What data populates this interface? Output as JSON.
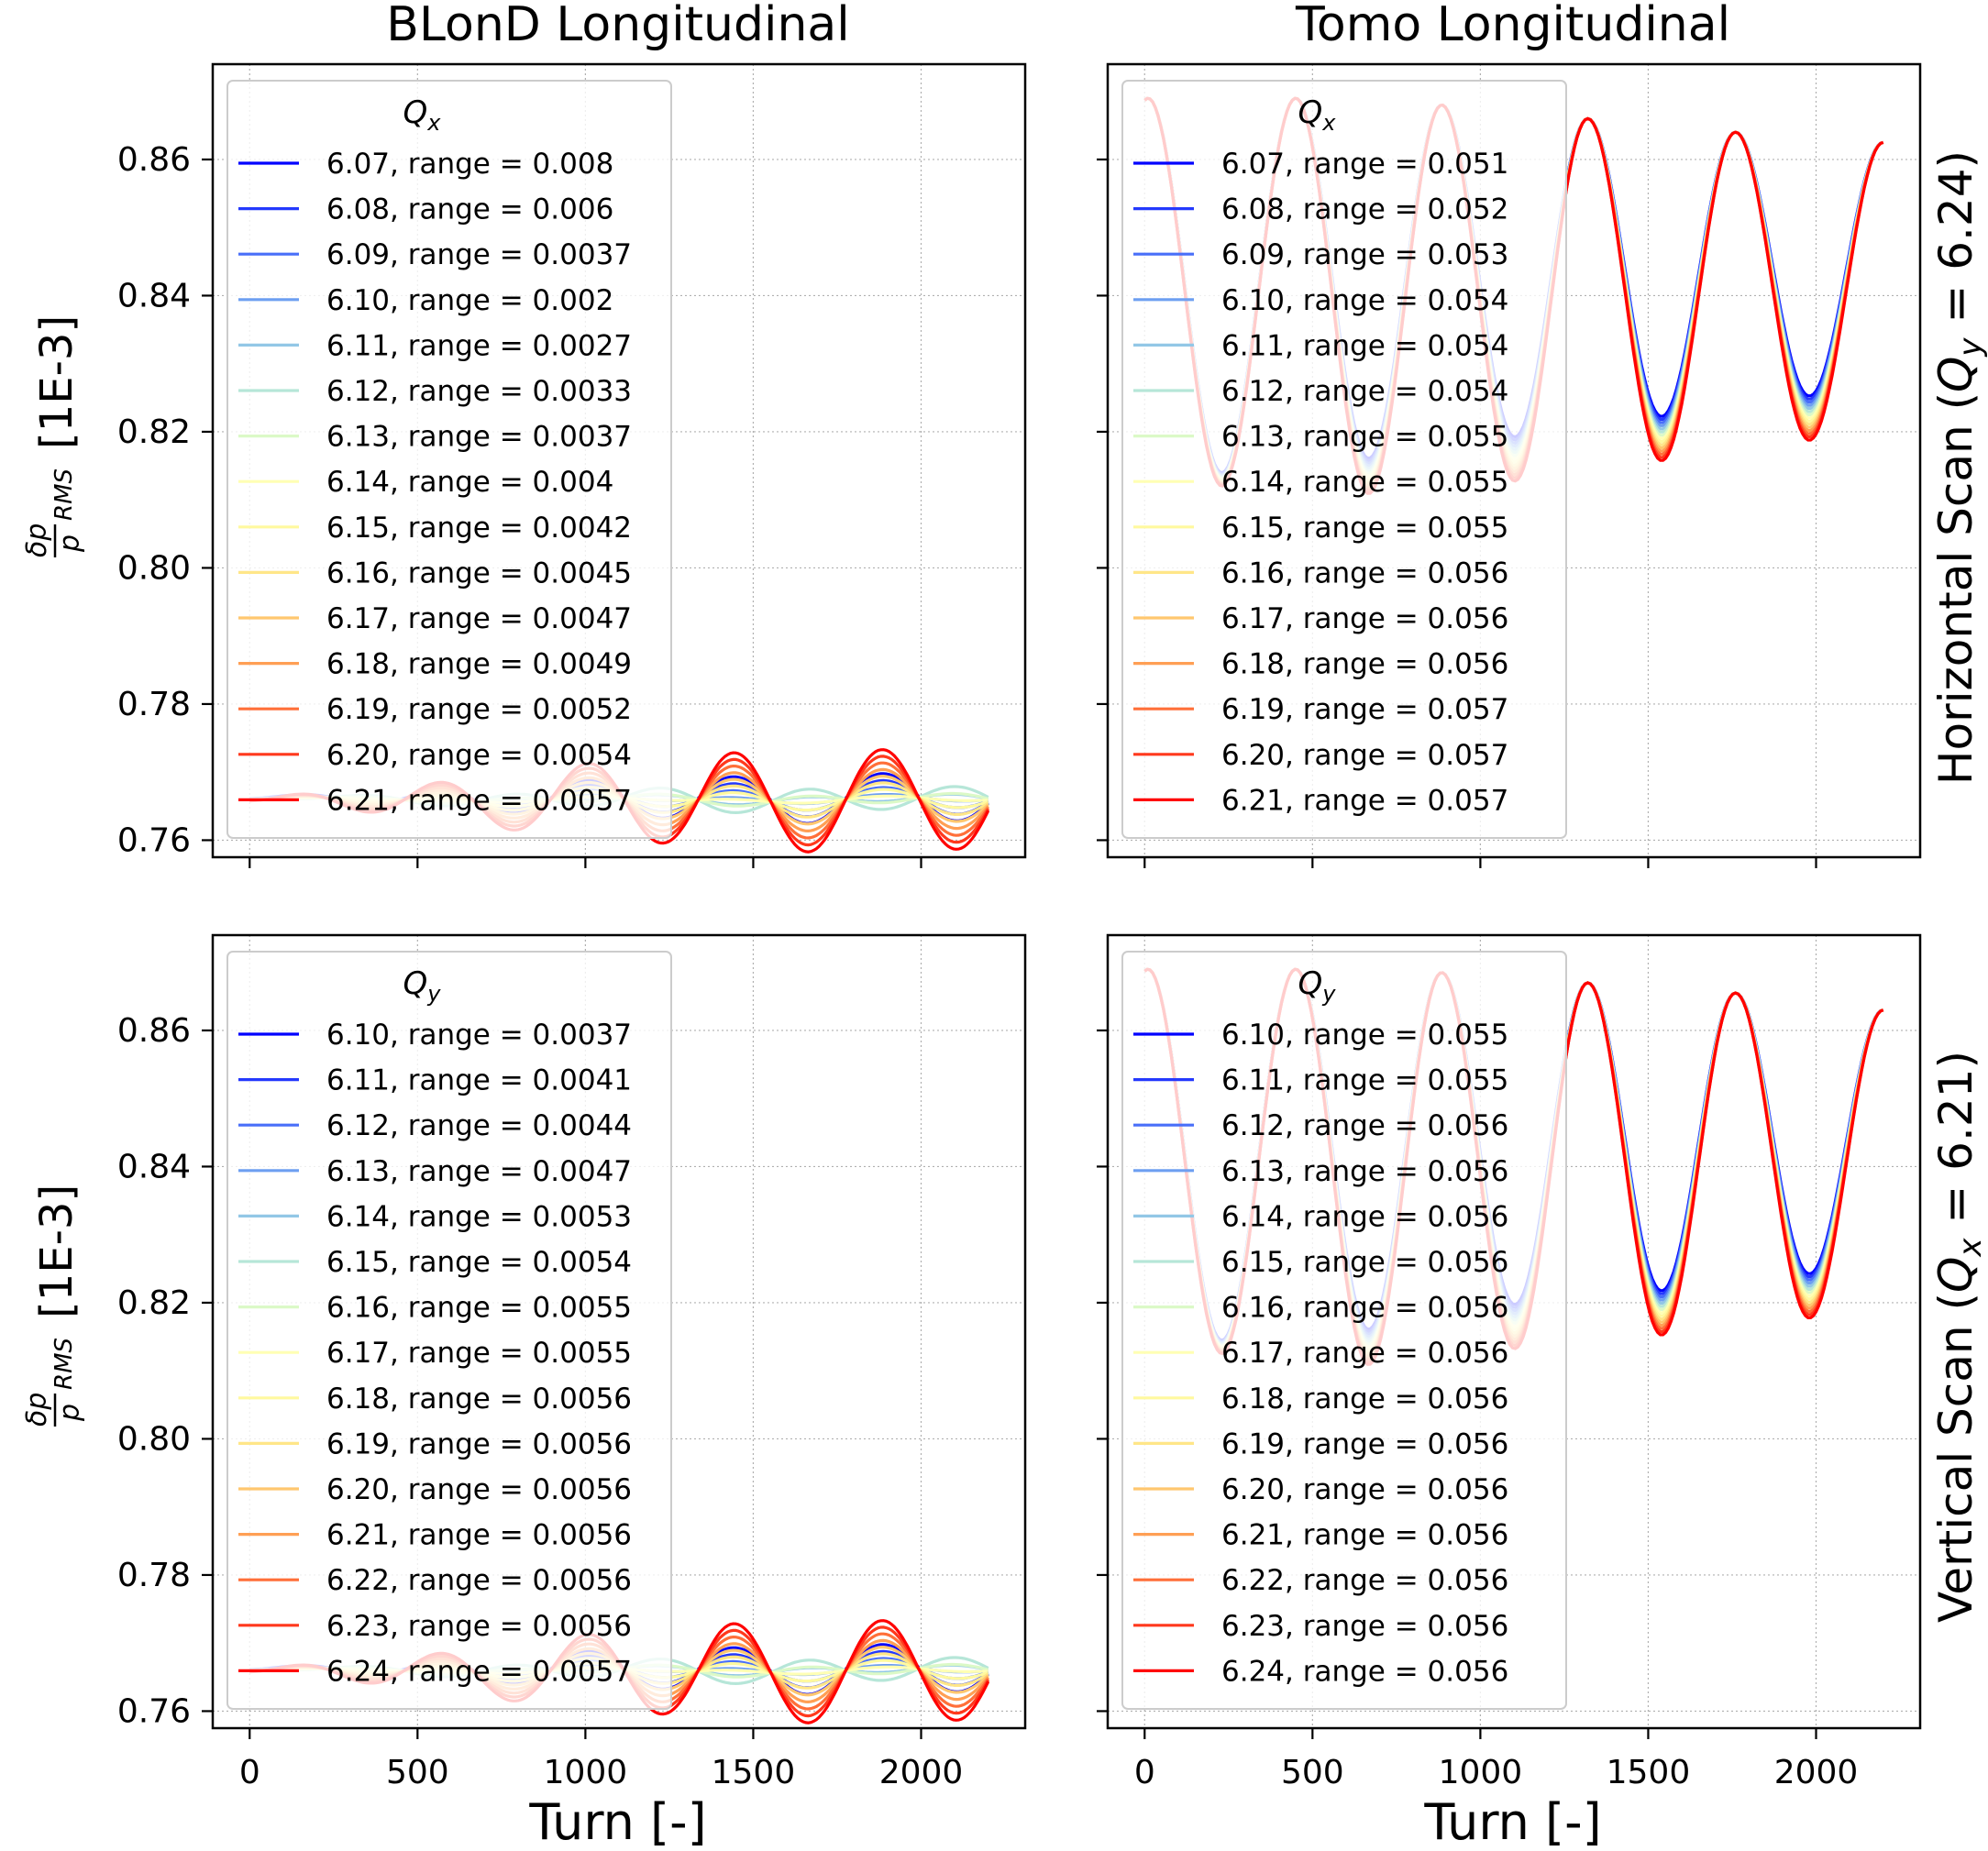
{
  "column_titles": [
    "BLonD Longitudinal",
    "Tomo Longitudinal"
  ],
  "row_labels": [
    {
      "prefix": "Horizontal Scan (",
      "sym": "Q",
      "sub": "y",
      "suffix": " = 6.24)"
    },
    {
      "prefix": "Vertical Scan (",
      "sym": "Q",
      "sub": "x",
      "suffix": " = 6.21)"
    }
  ],
  "ylabel": {
    "num": "δp",
    "den": "p",
    "sub": "RMS",
    "unit": "[1E-3]"
  },
  "xlabel": "Turn [-]",
  "colors": {
    "scan_colormap": "rainbow",
    "grid": "#b0b0b0",
    "axes": "#000000"
  },
  "chart_data": [
    {
      "type": "line",
      "panel": "BLonD Longitudinal / Horizontal Scan",
      "legend_title": {
        "sym": "Q",
        "sub": "x"
      },
      "legend_position": "upper-left",
      "xlim": [
        -110,
        2310
      ],
      "ylim": [
        0.7575,
        0.874
      ],
      "xticks": [
        0,
        500,
        1000,
        1500,
        2000
      ],
      "yticks": [
        0.76,
        0.78,
        0.8,
        0.82,
        0.84,
        0.86
      ],
      "grid": true,
      "model": {
        "x_end": 2200,
        "base": 0.766,
        "period": 440,
        "phase_turn": 0,
        "damp_gain": 4e-05
      },
      "series": [
        {
          "name": "6.07, range = 0.008",
          "tune": 6.07,
          "range": 0.008
        },
        {
          "name": "6.08, range = 0.006",
          "tune": 6.08,
          "range": 0.006
        },
        {
          "name": "6.09, range = 0.0037",
          "tune": 6.09,
          "range": 0.0037
        },
        {
          "name": "6.10, range = 0.002",
          "tune": 6.1,
          "range": 0.002
        },
        {
          "name": "6.11, range = 0.0027",
          "tune": 6.11,
          "range": 0.0027
        },
        {
          "name": "6.12, range = 0.0033",
          "tune": 6.12,
          "range": 0.0033
        },
        {
          "name": "6.13, range = 0.0037",
          "tune": 6.13,
          "range": 0.0037
        },
        {
          "name": "6.14, range = 0.004",
          "tune": 6.14,
          "range": 0.004
        },
        {
          "name": "6.15, range = 0.0042",
          "tune": 6.15,
          "range": 0.0042
        },
        {
          "name": "6.16, range = 0.0045",
          "tune": 6.16,
          "range": 0.0045
        },
        {
          "name": "6.17, range = 0.0047",
          "tune": 6.17,
          "range": 0.0047
        },
        {
          "name": "6.18, range = 0.0049",
          "tune": 6.18,
          "range": 0.0049
        },
        {
          "name": "6.19, range = 0.0052",
          "tune": 6.19,
          "range": 0.0052
        },
        {
          "name": "6.20, range = 0.0054",
          "tune": 6.2,
          "range": 0.0054
        },
        {
          "name": "6.21, range = 0.0057",
          "tune": 6.21,
          "range": 0.0057
        }
      ]
    },
    {
      "type": "line",
      "panel": "Tomo Longitudinal / Horizontal Scan",
      "legend_title": {
        "sym": "Q",
        "sub": "x"
      },
      "legend_position": "upper-left",
      "xlim": [
        -110,
        2310
      ],
      "ylim": [
        0.7575,
        0.874
      ],
      "xticks": [
        0,
        500,
        1000,
        1500,
        2000
      ],
      "yticks": [
        0.76,
        0.78,
        0.8,
        0.82,
        0.84,
        0.86
      ],
      "grid": true,
      "model": {
        "x_end": 2200,
        "peaks": [
          0.869,
          0.869,
          0.868,
          0.866,
          0.864,
          0.8625
        ],
        "peak_turns": [
          10,
          450,
          885,
          1320,
          1760,
          2200
        ],
        "troughs": [
          0.813,
          0.8135,
          0.816,
          0.819,
          0.822
        ]
      },
      "series": [
        {
          "name": "6.07, range = 0.051",
          "tune": 6.07,
          "range": 0.051
        },
        {
          "name": "6.08, range = 0.052",
          "tune": 6.08,
          "range": 0.052
        },
        {
          "name": "6.09, range = 0.053",
          "tune": 6.09,
          "range": 0.053
        },
        {
          "name": "6.10, range = 0.054",
          "tune": 6.1,
          "range": 0.054
        },
        {
          "name": "6.11, range = 0.054",
          "tune": 6.11,
          "range": 0.054
        },
        {
          "name": "6.12, range = 0.054",
          "tune": 6.12,
          "range": 0.054
        },
        {
          "name": "6.13, range = 0.055",
          "tune": 6.13,
          "range": 0.055
        },
        {
          "name": "6.14, range = 0.055",
          "tune": 6.14,
          "range": 0.055
        },
        {
          "name": "6.15, range = 0.055",
          "tune": 6.15,
          "range": 0.055
        },
        {
          "name": "6.16, range = 0.056",
          "tune": 6.16,
          "range": 0.056
        },
        {
          "name": "6.17, range = 0.056",
          "tune": 6.17,
          "range": 0.056
        },
        {
          "name": "6.18, range = 0.056",
          "tune": 6.18,
          "range": 0.056
        },
        {
          "name": "6.19, range = 0.057",
          "tune": 6.19,
          "range": 0.057
        },
        {
          "name": "6.20, range = 0.057",
          "tune": 6.2,
          "range": 0.057
        },
        {
          "name": "6.21, range = 0.057",
          "tune": 6.21,
          "range": 0.057
        }
      ]
    },
    {
      "type": "line",
      "panel": "BLonD Longitudinal / Vertical Scan",
      "legend_title": {
        "sym": "Q",
        "sub": "y"
      },
      "legend_position": "upper-left",
      "xlim": [
        -110,
        2310
      ],
      "ylim": [
        0.7575,
        0.874
      ],
      "xticks": [
        0,
        500,
        1000,
        1500,
        2000
      ],
      "yticks": [
        0.76,
        0.78,
        0.8,
        0.82,
        0.84,
        0.86
      ],
      "grid": true,
      "model": {
        "x_end": 2200,
        "base": 0.766,
        "period": 440,
        "phase_turn": 0,
        "damp_gain": 4e-05
      },
      "series": [
        {
          "name": "6.10, range = 0.0037",
          "tune": 6.1,
          "range": 0.0037
        },
        {
          "name": "6.11, range = 0.0041",
          "tune": 6.11,
          "range": 0.0041
        },
        {
          "name": "6.12, range = 0.0044",
          "tune": 6.12,
          "range": 0.0044
        },
        {
          "name": "6.13, range = 0.0047",
          "tune": 6.13,
          "range": 0.0047
        },
        {
          "name": "6.14, range = 0.0053",
          "tune": 6.14,
          "range": 0.0053
        },
        {
          "name": "6.15, range = 0.0054",
          "tune": 6.15,
          "range": 0.0054
        },
        {
          "name": "6.16, range = 0.0055",
          "tune": 6.16,
          "range": 0.0055
        },
        {
          "name": "6.17, range = 0.0055",
          "tune": 6.17,
          "range": 0.0055
        },
        {
          "name": "6.18, range = 0.0056",
          "tune": 6.18,
          "range": 0.0056
        },
        {
          "name": "6.19, range = 0.0056",
          "tune": 6.19,
          "range": 0.0056
        },
        {
          "name": "6.20, range = 0.0056",
          "tune": 6.2,
          "range": 0.0056
        },
        {
          "name": "6.21, range = 0.0056",
          "tune": 6.21,
          "range": 0.0056
        },
        {
          "name": "6.22, range = 0.0056",
          "tune": 6.22,
          "range": 0.0056
        },
        {
          "name": "6.23, range = 0.0056",
          "tune": 6.23,
          "range": 0.0056
        },
        {
          "name": "6.24, range = 0.0057",
          "tune": 6.24,
          "range": 0.0057
        }
      ]
    },
    {
      "type": "line",
      "panel": "Tomo Longitudinal / Vertical Scan",
      "legend_title": {
        "sym": "Q",
        "sub": "y"
      },
      "legend_position": "upper-left",
      "xlim": [
        -110,
        2310
      ],
      "ylim": [
        0.7575,
        0.874
      ],
      "xticks": [
        0,
        500,
        1000,
        1500,
        2000
      ],
      "yticks": [
        0.76,
        0.78,
        0.8,
        0.82,
        0.84,
        0.86
      ],
      "grid": true,
      "model": {
        "x_end": 2200,
        "peaks": [
          0.869,
          0.869,
          0.8685,
          0.867,
          0.8655,
          0.863
        ],
        "peak_turns": [
          10,
          450,
          885,
          1320,
          1760,
          2200
        ],
        "troughs": [
          0.8135,
          0.8135,
          0.8165,
          0.8185,
          0.821
        ]
      },
      "series": [
        {
          "name": "6.10, range = 0.055",
          "tune": 6.1,
          "range": 0.055
        },
        {
          "name": "6.11, range = 0.055",
          "tune": 6.11,
          "range": 0.055
        },
        {
          "name": "6.12, range = 0.056",
          "tune": 6.12,
          "range": 0.056
        },
        {
          "name": "6.13, range = 0.056",
          "tune": 6.13,
          "range": 0.056
        },
        {
          "name": "6.14, range = 0.056",
          "tune": 6.14,
          "range": 0.056
        },
        {
          "name": "6.15, range = 0.056",
          "tune": 6.15,
          "range": 0.056
        },
        {
          "name": "6.16, range = 0.056",
          "tune": 6.16,
          "range": 0.056
        },
        {
          "name": "6.17, range = 0.056",
          "tune": 6.17,
          "range": 0.056
        },
        {
          "name": "6.18, range = 0.056",
          "tune": 6.18,
          "range": 0.056
        },
        {
          "name": "6.19, range = 0.056",
          "tune": 6.19,
          "range": 0.056
        },
        {
          "name": "6.20, range = 0.056",
          "tune": 6.2,
          "range": 0.056
        },
        {
          "name": "6.21, range = 0.056",
          "tune": 6.21,
          "range": 0.056
        },
        {
          "name": "6.22, range = 0.056",
          "tune": 6.22,
          "range": 0.056
        },
        {
          "name": "6.23, range = 0.056",
          "tune": 6.23,
          "range": 0.056
        },
        {
          "name": "6.24, range = 0.056",
          "tune": 6.24,
          "range": 0.056
        }
      ]
    }
  ]
}
